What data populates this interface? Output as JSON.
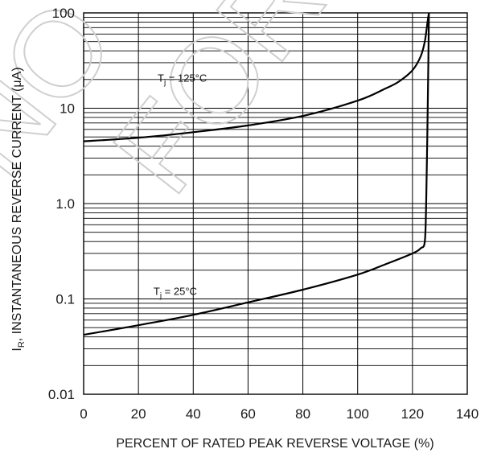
{
  "chart_data": {
    "type": "line",
    "title": "",
    "xlabel": "PERCENT OF RATED PEAK REVERSE VOLTAGE (%)",
    "ylabel_main": "I",
    "ylabel_sub": "R",
    "ylabel_rest": ", INSTANTANEOUS REVERSE CURRENT (μA)",
    "xlim": [
      0,
      140
    ],
    "ylim": [
      0.01,
      100
    ],
    "yscale": "log",
    "grid": true,
    "x_ticks": [
      "0",
      "20",
      "40",
      "60",
      "80",
      "100",
      "120",
      "140"
    ],
    "y_ticks": [
      "0.01",
      "0.1",
      "1.0",
      "10",
      "100"
    ],
    "watermark": [
      "NO",
      "FOR"
    ],
    "series": [
      {
        "label_main": "T",
        "label_sub": "j",
        "label_rest": " = 125°C",
        "color": "#000000",
        "points": [
          [
            0,
            4.5
          ],
          [
            20,
            4.9
          ],
          [
            40,
            5.6
          ],
          [
            60,
            6.6
          ],
          [
            80,
            8.3
          ],
          [
            100,
            12
          ],
          [
            110,
            16
          ],
          [
            115,
            19
          ],
          [
            120,
            25
          ],
          [
            123,
            35
          ],
          [
            124.5,
            50
          ],
          [
            125.5,
            80
          ],
          [
            126,
            100
          ]
        ]
      },
      {
        "label_main": "T",
        "label_sub": "j",
        "label_rest": " = 25°C",
        "color": "#000000",
        "points": [
          [
            0,
            0.042
          ],
          [
            20,
            0.053
          ],
          [
            40,
            0.068
          ],
          [
            60,
            0.092
          ],
          [
            80,
            0.125
          ],
          [
            100,
            0.18
          ],
          [
            110,
            0.23
          ],
          [
            120,
            0.3
          ],
          [
            123,
            0.34
          ],
          [
            124.5,
            0.4
          ],
          [
            125,
            1.0
          ],
          [
            125.4,
            5
          ],
          [
            125.8,
            30
          ],
          [
            126,
            100
          ]
        ]
      }
    ]
  }
}
